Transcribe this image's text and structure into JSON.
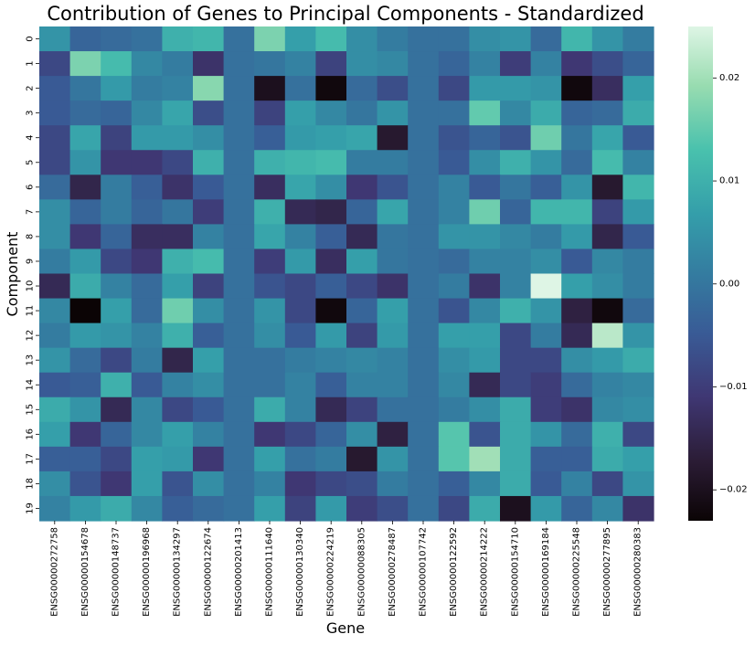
{
  "chart_data": {
    "type": "heatmap",
    "title": "Contribution of Genes to Principal Components - Standardized",
    "xlabel": "Gene",
    "ylabel": "Component",
    "x_categories": [
      "ENSG00000272758",
      "ENSG00000154678",
      "ENSG00000148737",
      "ENSG00000196968",
      "ENSG00000134297",
      "ENSG00000122674",
      "ENSG00000201413",
      "ENSG00000111640",
      "ENSG00000130340",
      "ENSG00000224219",
      "ENSG00000088305",
      "ENSG00000278487",
      "ENSG00000107742",
      "ENSG00000122592",
      "ENSG00000214222",
      "ENSG00000154710",
      "ENSG00000169184",
      "ENSG00000225548",
      "ENSG00000277895",
      "ENSG00000280383"
    ],
    "y_categories": [
      "0",
      "1",
      "2",
      "3",
      "4",
      "5",
      "6",
      "7",
      "8",
      "9",
      "10",
      "11",
      "12",
      "13",
      "14",
      "15",
      "16",
      "17",
      "18",
      "19"
    ],
    "colormap": "mako",
    "vmin": -0.023,
    "vmax": 0.025,
    "colorbar_ticks": [
      -0.02,
      -0.01,
      0.0,
      0.01,
      0.02
    ],
    "colorbar_tick_labels": [
      "−0.02",
      "−0.01",
      "0.00",
      "0.01",
      "0.02"
    ],
    "values": [
      [
        0.005,
        -0.003,
        -0.002,
        -0.001,
        0.01,
        0.011,
        -0.001,
        0.017,
        0.007,
        0.012,
        0.004,
        0.001,
        -0.001,
        -0.001,
        0.004,
        0.005,
        -0.002,
        0.011,
        0.005,
        0.001
      ],
      [
        -0.008,
        0.017,
        0.012,
        0.003,
        0.001,
        -0.012,
        -0.001,
        0.0,
        0.002,
        -0.009,
        0.004,
        0.003,
        -0.001,
        -0.003,
        0.002,
        -0.01,
        0.002,
        -0.011,
        -0.007,
        -0.003
      ],
      [
        -0.005,
        0.0,
        0.006,
        0.001,
        0.002,
        0.018,
        -0.001,
        -0.02,
        -0.001,
        -0.022,
        -0.002,
        -0.007,
        -0.001,
        -0.008,
        0.006,
        0.006,
        0.005,
        -0.022,
        -0.013,
        0.007
      ],
      [
        -0.005,
        -0.002,
        -0.003,
        0.003,
        0.008,
        -0.007,
        -0.001,
        -0.009,
        0.007,
        0.003,
        0.0,
        0.005,
        -0.001,
        -0.001,
        0.015,
        0.003,
        0.009,
        -0.003,
        -0.002,
        0.009
      ],
      [
        -0.008,
        0.008,
        -0.009,
        0.006,
        0.006,
        0.004,
        -0.001,
        -0.004,
        0.006,
        0.007,
        0.008,
        -0.018,
        -0.001,
        -0.006,
        -0.003,
        -0.006,
        0.016,
        0.0,
        0.008,
        -0.005
      ],
      [
        -0.008,
        0.005,
        -0.011,
        -0.011,
        -0.008,
        0.01,
        -0.001,
        0.01,
        0.011,
        0.012,
        0.001,
        0.001,
        -0.001,
        -0.005,
        0.004,
        0.01,
        0.005,
        -0.002,
        0.012,
        0.002
      ],
      [
        -0.002,
        -0.015,
        0.001,
        -0.004,
        -0.012,
        -0.005,
        -0.001,
        -0.013,
        0.008,
        0.004,
        -0.011,
        -0.006,
        -0.001,
        0.002,
        -0.005,
        0.0,
        -0.004,
        0.005,
        -0.018,
        0.011
      ],
      [
        0.004,
        -0.003,
        0.001,
        -0.003,
        0.0,
        -0.01,
        -0.001,
        0.01,
        -0.014,
        -0.015,
        -0.003,
        0.008,
        -0.001,
        0.002,
        0.016,
        -0.003,
        0.011,
        0.011,
        -0.009,
        0.006
      ],
      [
        0.004,
        -0.011,
        -0.003,
        -0.013,
        -0.013,
        0.002,
        -0.001,
        0.008,
        0.002,
        -0.004,
        -0.014,
        0.0,
        -0.001,
        0.005,
        0.005,
        0.003,
        0.001,
        0.006,
        -0.015,
        -0.005
      ],
      [
        0.001,
        0.006,
        -0.008,
        -0.011,
        0.01,
        0.012,
        -0.001,
        -0.01,
        0.006,
        -0.013,
        0.007,
        0.0,
        -0.001,
        -0.002,
        0.002,
        0.002,
        0.004,
        -0.005,
        0.003,
        0.001
      ],
      [
        -0.014,
        0.009,
        0.002,
        -0.002,
        0.007,
        -0.009,
        -0.001,
        -0.006,
        -0.008,
        -0.004,
        -0.008,
        -0.012,
        -0.001,
        0.001,
        -0.012,
        0.002,
        0.025,
        0.007,
        0.004,
        0.001
      ],
      [
        0.003,
        -0.023,
        0.007,
        -0.002,
        0.016,
        0.004,
        -0.001,
        0.005,
        -0.008,
        -0.022,
        -0.003,
        0.007,
        -0.001,
        -0.006,
        0.003,
        0.01,
        0.005,
        -0.016,
        -0.022,
        -0.002
      ],
      [
        0.001,
        0.006,
        0.005,
        0.002,
        0.01,
        -0.004,
        -0.001,
        0.004,
        -0.005,
        0.006,
        -0.009,
        0.006,
        -0.001,
        0.007,
        0.007,
        -0.008,
        0.001,
        -0.014,
        0.022,
        0.005
      ],
      [
        0.005,
        -0.002,
        -0.008,
        0.001,
        -0.015,
        0.007,
        -0.001,
        -0.001,
        0.001,
        0.002,
        0.003,
        0.002,
        -0.001,
        0.004,
        0.006,
        -0.008,
        -0.008,
        0.004,
        0.006,
        0.009
      ],
      [
        -0.005,
        -0.004,
        0.01,
        -0.005,
        0.002,
        0.004,
        -0.001,
        -0.001,
        0.002,
        -0.004,
        0.002,
        0.002,
        -0.001,
        0.003,
        -0.014,
        -0.008,
        -0.01,
        -0.002,
        0.002,
        0.003
      ],
      [
        0.009,
        0.005,
        -0.014,
        0.003,
        -0.008,
        -0.005,
        -0.001,
        0.009,
        0.002,
        -0.014,
        -0.009,
        -0.001,
        -0.001,
        0.001,
        0.004,
        0.009,
        -0.01,
        -0.012,
        0.003,
        0.004
      ],
      [
        0.007,
        -0.011,
        -0.003,
        0.003,
        0.007,
        0.002,
        -0.001,
        -0.011,
        -0.008,
        -0.003,
        0.004,
        -0.016,
        -0.001,
        0.014,
        -0.006,
        0.009,
        0.005,
        -0.002,
        0.01,
        -0.008
      ],
      [
        -0.004,
        -0.004,
        -0.008,
        0.007,
        0.006,
        -0.011,
        -0.001,
        0.007,
        -0.001,
        0.001,
        -0.018,
        0.005,
        -0.001,
        0.014,
        0.02,
        0.009,
        -0.004,
        -0.004,
        0.009,
        0.007
      ],
      [
        0.004,
        -0.006,
        -0.011,
        0.007,
        -0.006,
        0.004,
        -0.001,
        0.002,
        -0.011,
        -0.008,
        -0.007,
        0.001,
        -0.001,
        -0.004,
        0.003,
        0.009,
        -0.005,
        0.002,
        -0.008,
        0.005
      ],
      [
        0.002,
        0.006,
        0.009,
        0.003,
        -0.004,
        -0.002,
        -0.001,
        0.007,
        -0.009,
        0.006,
        -0.01,
        -0.007,
        -0.001,
        -0.008,
        0.009,
        -0.02,
        0.006,
        -0.003,
        0.003,
        -0.012
      ]
    ]
  }
}
